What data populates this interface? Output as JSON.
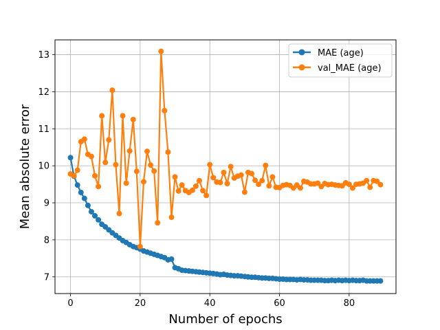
{
  "chart_data": {
    "type": "line",
    "title": "",
    "xlabel": "Number of epochs",
    "ylabel": "Mean absolute error",
    "xlim": [
      -4.45,
      93.45
    ],
    "ylim": [
      6.55,
      13.4
    ],
    "xticks": [
      0,
      20,
      40,
      60,
      80
    ],
    "yticks": [
      7,
      8,
      9,
      10,
      11,
      12,
      13
    ],
    "grid": true,
    "legend_position": "top-right",
    "series": [
      {
        "name": "MAE (age)",
        "color": "#1f77b4",
        "marker": "circle",
        "values": [
          10.22,
          9.72,
          9.48,
          9.28,
          9.12,
          8.93,
          8.76,
          8.65,
          8.54,
          8.42,
          8.35,
          8.27,
          8.19,
          8.12,
          8.05,
          7.98,
          7.93,
          7.87,
          7.82,
          7.79,
          7.75,
          7.7,
          7.67,
          7.64,
          7.61,
          7.58,
          7.55,
          7.52,
          7.46,
          7.48,
          7.25,
          7.22,
          7.18,
          7.17,
          7.16,
          7.15,
          7.14,
          7.13,
          7.12,
          7.11,
          7.1,
          7.09,
          7.08,
          7.06,
          7.07,
          7.05,
          7.04,
          7.03,
          7.03,
          7.02,
          7.01,
          7.0,
          6.99,
          6.99,
          6.98,
          6.97,
          6.97,
          6.96,
          6.96,
          6.95,
          6.94,
          6.94,
          6.93,
          6.93,
          6.93,
          6.92,
          6.93,
          6.92,
          6.92,
          6.91,
          6.91,
          6.91,
          6.91,
          6.9,
          6.9,
          6.91,
          6.9,
          6.91,
          6.9,
          6.91,
          6.9,
          6.91,
          6.9,
          6.9,
          6.91,
          6.89,
          6.89,
          6.89,
          6.89,
          6.89
        ]
      },
      {
        "name": "val_MAE (age)",
        "color": "#ff7f0e",
        "marker": "circle",
        "values": [
          9.78,
          9.73,
          9.88,
          10.65,
          10.72,
          10.31,
          10.25,
          9.73,
          9.44,
          11.35,
          10.09,
          10.7,
          12.04,
          10.03,
          8.71,
          11.35,
          9.53,
          10.4,
          11.25,
          9.85,
          7.82,
          9.57,
          10.39,
          10.02,
          9.86,
          8.46,
          13.09,
          11.49,
          10.37,
          8.61,
          9.7,
          9.32,
          9.48,
          9.33,
          9.28,
          9.34,
          9.45,
          9.6,
          9.33,
          9.2,
          10.03,
          9.68,
          9.56,
          9.55,
          9.82,
          9.52,
          9.98,
          9.67,
          9.72,
          9.75,
          9.29,
          9.82,
          9.79,
          9.61,
          9.5,
          9.6,
          10.01,
          9.46,
          9.7,
          9.42,
          9.41,
          9.47,
          9.49,
          9.47,
          9.4,
          9.48,
          9.4,
          9.58,
          9.56,
          9.51,
          9.51,
          9.53,
          9.44,
          9.52,
          9.49,
          9.5,
          9.48,
          9.47,
          9.46,
          9.54,
          9.5,
          9.4,
          9.5,
          9.51,
          9.53,
          9.6,
          9.42,
          9.6,
          9.58,
          9.49
        ]
      }
    ]
  }
}
